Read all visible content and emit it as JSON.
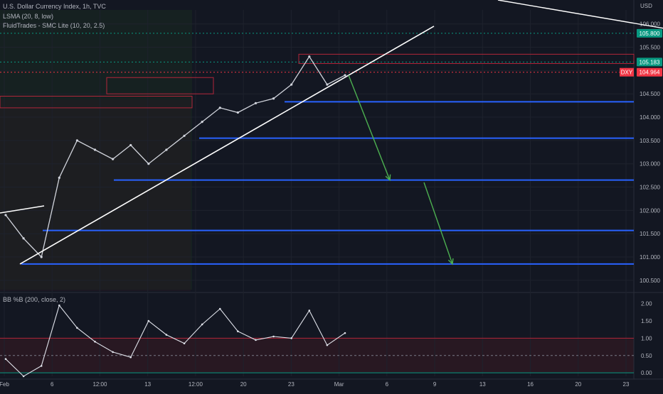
{
  "header": {
    "title": "U.S. Dollar Currency Index, 1h, TVC",
    "indicator_1": "LSMA (20, 8, low)",
    "indicator_2": "FluidTrades - SMC Lite (10, 20, 2.5)",
    "lower_pane_label": "BB %B (200, close, 2)",
    "currency": "USD"
  },
  "colors": {
    "background": "#131722",
    "grid": "#1e222d",
    "price_line": "#d1d4dc",
    "trendline": "#ffffff",
    "support_zone": "#2962ff",
    "supply_zone": "#b2263a",
    "projection_arrow": "#4caf50",
    "last_price_badge": "#f23645",
    "level_badge": "#089981"
  },
  "chart_data": [
    {
      "type": "line",
      "pane": "price",
      "series": [
        {
          "name": "DXY",
          "x": [
            "Feb 1",
            "Feb 2",
            "Feb 3",
            "Feb 6",
            "Feb 7",
            "Feb 8",
            "Feb 9",
            "Feb 10",
            "Feb 13",
            "Feb 14",
            "Feb 15",
            "Feb 16",
            "Feb 17",
            "Feb 20",
            "Feb 21",
            "Feb 22",
            "Feb 23",
            "Feb 24",
            "Feb 27",
            "Feb 28"
          ],
          "values": [
            101.9,
            101.4,
            101.0,
            102.7,
            103.5,
            103.3,
            103.1,
            103.4,
            103.0,
            103.3,
            103.6,
            103.9,
            104.2,
            104.1,
            104.3,
            104.4,
            104.7,
            105.3,
            104.7,
            104.9
          ]
        }
      ],
      "y_axis": {
        "ylim": [
          100.3,
          106.3
        ],
        "ticks": [
          "100.500",
          "101.000",
          "101.500",
          "102.000",
          "102.500",
          "103.000",
          "103.500",
          "104.000",
          "104.500",
          "105.000",
          "105.500",
          "106.000"
        ]
      },
      "x_axis": {
        "ticks": [
          "Feb",
          "6",
          "12:00",
          "13",
          "12:00",
          "20",
          "23",
          "Mar",
          "6",
          "9",
          "13",
          "16",
          "20",
          "23"
        ]
      },
      "price_badges": [
        {
          "label": "105.800",
          "value": 105.8
        },
        {
          "label": "105.183",
          "value": 105.183
        },
        {
          "symbol": "DXY",
          "label": "104.964",
          "value": 104.964
        }
      ],
      "horizontal_levels": [
        104.33,
        103.55,
        102.65,
        101.57,
        100.85
      ],
      "projection_targets": [
        102.65,
        100.85
      ]
    },
    {
      "type": "line",
      "pane": "indicator",
      "series": [
        {
          "name": "BB %B",
          "x": [
            "Feb 1",
            "Feb 2",
            "Feb 3",
            "Feb 6",
            "Feb 7",
            "Feb 8",
            "Feb 9",
            "Feb 10",
            "Feb 13",
            "Feb 14",
            "Feb 15",
            "Feb 16",
            "Feb 17",
            "Feb 20",
            "Feb 21",
            "Feb 22",
            "Feb 23",
            "Feb 24",
            "Feb 27",
            "Feb 28"
          ],
          "values": [
            0.4,
            -0.1,
            0.2,
            1.95,
            1.3,
            0.9,
            0.6,
            0.45,
            1.5,
            1.1,
            0.85,
            1.4,
            1.85,
            1.2,
            0.95,
            1.05,
            1.0,
            1.8,
            0.8,
            1.15
          ]
        }
      ],
      "y_axis": {
        "ylim": [
          -0.1,
          2.2
        ],
        "ticks": [
          "0.00",
          "0.50",
          "1.00",
          "1.50",
          "2.00"
        ]
      },
      "reference_levels": [
        1.0,
        0.5,
        0.0
      ]
    }
  ]
}
